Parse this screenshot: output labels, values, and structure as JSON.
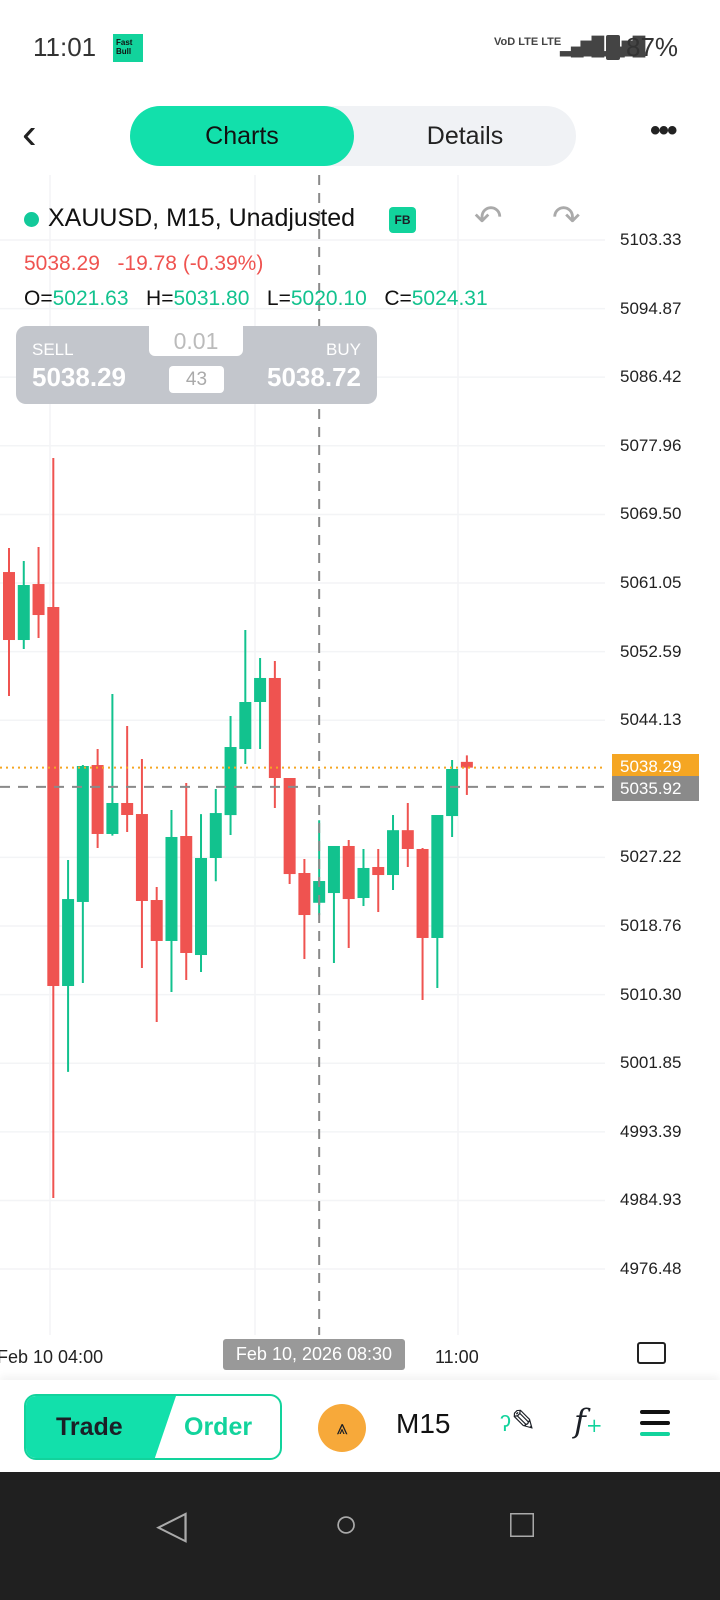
{
  "status": {
    "time": "11:01",
    "app_logo": "Fast Bull",
    "signal": "VoD LTE LTE",
    "battery": "87%"
  },
  "header": {
    "tabs": [
      "Charts",
      "Details"
    ],
    "active_tab": "Charts"
  },
  "symbol": {
    "title": "XAUUSD, M15, Unadjusted",
    "badge": "FB",
    "last": "5038.29",
    "change": "-19.78 (-0.39%)",
    "ohlc": {
      "o_label": "O=",
      "o": "5021.63",
      "h_label": "H=",
      "h": "5031.80",
      "l_label": "L=",
      "l": "5020.10",
      "c_label": "C=",
      "c": "5024.31"
    }
  },
  "trade_panel": {
    "sell_label": "SELL",
    "sell": "5038.29",
    "buy_label": "BUY",
    "buy": "5038.72",
    "lot": "0.01",
    "spread": "43"
  },
  "colors": {
    "up": "#12c28e",
    "down": "#ef5350",
    "accent": "#12e0ab",
    "current": "#f5a623",
    "crosshair": "#8a8a8a"
  },
  "chart_data": {
    "type": "candlestick",
    "y_ticks": [
      "5103.33",
      "5094.87",
      "5086.42",
      "5077.96",
      "5069.50",
      "5061.05",
      "5052.59",
      "5044.13",
      "5035.92",
      "5027.22",
      "5018.76",
      "5010.30",
      "5001.85",
      "4993.39",
      "4984.93",
      "4976.48"
    ],
    "y_tick_values": [
      5103.33,
      5094.87,
      5086.42,
      5077.96,
      5069.5,
      5061.05,
      5052.59,
      5044.13,
      5027.22,
      5018.76,
      5010.3,
      5001.85,
      4993.39,
      4984.93,
      4976.48
    ],
    "ylim": [
      4971,
      5109
    ],
    "x_labels": [
      "Feb 10 04:00",
      "11:00"
    ],
    "crosshair_date": "Feb 10, 2026 08:30",
    "current_price": "5038.29",
    "crosshair_price": "5035.92",
    "crosshair_index": 21,
    "candles": [
      [
        5062.4,
        5065.36,
        5047.12,
        5054.02
      ],
      [
        5054.02,
        5063.76,
        5052.91,
        5060.8
      ],
      [
        5060.92,
        5065.49,
        5054.27,
        5057.1
      ],
      [
        5058.09,
        5076.46,
        4985.24,
        5011.37
      ],
      [
        5011.37,
        5026.9,
        5000.78,
        5022.09
      ],
      [
        5021.73,
        5038.61,
        5011.74,
        5038.49
      ],
      [
        5038.61,
        5040.58,
        5028.38,
        5030.11
      ],
      [
        5030.11,
        5047.37,
        5029.9,
        5033.93
      ],
      [
        5033.93,
        5043.42,
        5030.35,
        5032.45
      ],
      [
        5032.57,
        5039.35,
        5013.59,
        5021.85
      ],
      [
        5021.97,
        5023.57,
        5006.93,
        5016.92
      ],
      [
        5016.92,
        5033.07,
        5010.63,
        5029.74
      ],
      [
        5029.86,
        5036.4,
        5012.11,
        5015.44
      ],
      [
        5015.19,
        5032.56,
        5013.1,
        5027.15
      ],
      [
        5027.15,
        5035.66,
        5024.28,
        5032.69
      ],
      [
        5032.44,
        5044.65,
        5029.99,
        5040.83
      ],
      [
        5040.58,
        5055.25,
        5038.74,
        5046.38
      ],
      [
        5046.38,
        5051.8,
        5040.58,
        5049.34
      ],
      [
        5049.34,
        5051.43,
        5033.31,
        5037.01
      ],
      [
        5037.01,
        5037.01,
        5023.94,
        5025.17
      ],
      [
        5025.3,
        5027.03,
        5014.7,
        5020.12
      ],
      [
        5021.63,
        5031.8,
        5020.1,
        5024.31
      ],
      [
        5022.83,
        5028.63,
        5014.2,
        5028.63
      ],
      [
        5028.63,
        5029.37,
        5016.05,
        5022.09
      ],
      [
        5022.22,
        5028.26,
        5021.23,
        5025.92
      ],
      [
        5026.04,
        5028.26,
        5020.49,
        5025.05
      ],
      [
        5025.05,
        5032.45,
        5023.2,
        5030.58
      ],
      [
        5030.58,
        5033.93,
        5026.04,
        5028.26
      ],
      [
        5028.26,
        5028.38,
        5009.65,
        5017.29
      ],
      [
        5017.29,
        5032.45,
        5011.12,
        5032.45
      ],
      [
        5032.32,
        5039.23,
        5029.74,
        5038.12
      ],
      [
        5039.0,
        5039.8,
        5034.92,
        5038.29
      ]
    ]
  },
  "toolbar": {
    "trade": "Trade",
    "order": "Order",
    "gold_icon": "△△△",
    "timeframe": "M15",
    "draw_icon": "ʔ∕",
    "func_icon": "f+"
  },
  "nav": {
    "back": "◁",
    "home": "○",
    "recent": "□"
  }
}
